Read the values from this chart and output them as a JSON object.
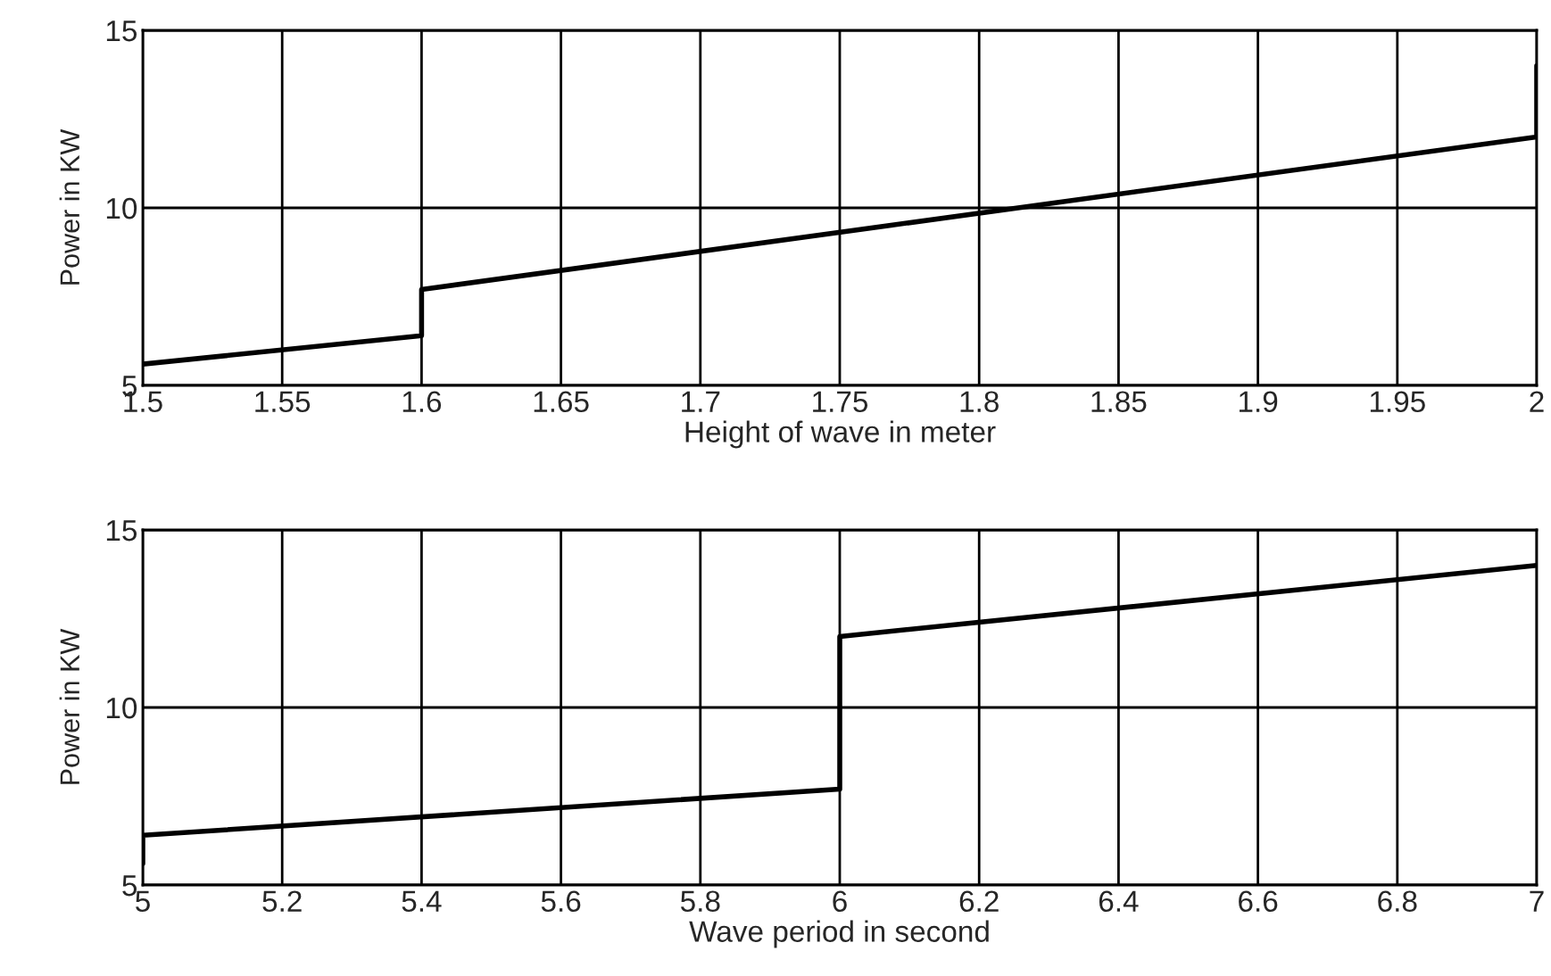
{
  "chart_data": [
    {
      "type": "line",
      "xlabel": "Height of wave in meter",
      "ylabel": "Power in KW",
      "series": [
        {
          "color": "#000000",
          "x": [
            1.5,
            1.6,
            1.6,
            2,
            2
          ],
          "values": [
            5.6,
            6.4,
            7.7,
            12,
            14
          ]
        }
      ],
      "xlim": [
        1.5,
        2
      ],
      "ylim": [
        5,
        15
      ],
      "xticks": [
        1.5,
        1.55,
        1.6,
        1.65,
        1.7,
        1.75,
        1.8,
        1.85,
        1.9,
        1.95,
        2
      ],
      "yticks": [
        5,
        10,
        15
      ],
      "grid": true,
      "line_style": "solid"
    },
    {
      "type": "line",
      "xlabel": "Wave period in second",
      "ylabel": "Power in KW",
      "series": [
        {
          "color": "#000000",
          "x": [
            5,
            5,
            6,
            6,
            7
          ],
          "values": [
            5.6,
            6.4,
            7.7,
            12,
            14
          ]
        }
      ],
      "xlim": [
        5,
        7
      ],
      "ylim": [
        5,
        15
      ],
      "xticks": [
        5,
        5.2,
        5.4,
        5.6,
        5.8,
        6,
        6.2,
        6.4,
        6.6,
        6.8,
        7
      ],
      "yticks": [
        5,
        10,
        15
      ],
      "grid": true,
      "line_style": "solid"
    }
  ]
}
